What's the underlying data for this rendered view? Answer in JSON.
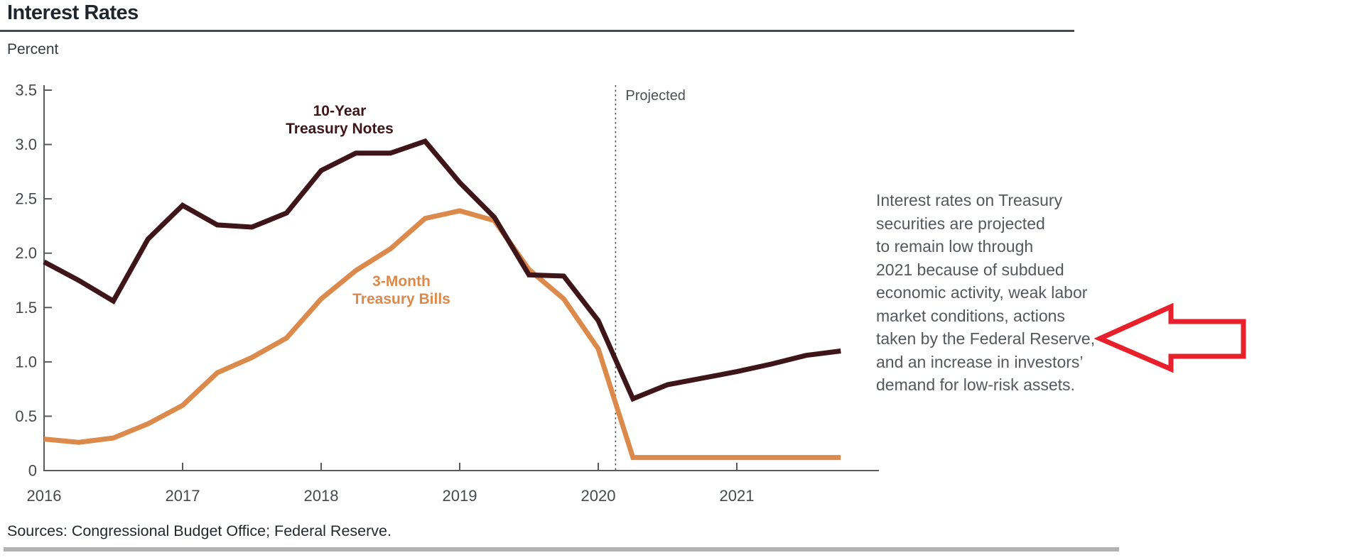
{
  "page": {
    "title": "Interest Rates",
    "unit_label": "Percent",
    "sources": "Sources: Congressional Budget Office; Federal Reserve.",
    "annotation": "Interest rates on Treasury\nsecurities are projected\nto remain low through\n2021 because of subdued\neconomic activity, weak labor\nmarket conditions, actions\ntaken by the Federal Reserve,\nand an increase in investors’\ndemand for low-risk assets."
  },
  "chart_data": {
    "type": "line",
    "title": "Interest Rates",
    "ylabel": "Percent",
    "ylim": [
      0,
      3.5
    ],
    "grid": false,
    "legend_position": "inline-labels",
    "y_ticks": [
      0,
      0.5,
      1.0,
      1.5,
      2.0,
      2.5,
      3.0,
      3.5
    ],
    "y_tick_labels": [
      "0",
      "0.5",
      "1.0",
      "1.5",
      "2.0",
      "2.5",
      "3.0",
      "3.5"
    ],
    "x_ticks": [
      2016,
      2017,
      2018,
      2019,
      2020,
      2021
    ],
    "x_tick_labels": [
      "2016",
      "2017",
      "2018",
      "2019",
      "2020",
      "2021"
    ],
    "x_start": 2016.0,
    "x_step": 0.25,
    "x_end": 2021.75,
    "projection": {
      "label": "Projected",
      "divider_x": 2020.125,
      "style": "dotted-vertical-line"
    },
    "series": [
      {
        "name": "3-Month Treasury Bills",
        "label_lines": [
          "3-Month",
          "Treasury Bills"
        ],
        "color": "#dc8a4b",
        "values": [
          0.29,
          0.26,
          0.3,
          0.43,
          0.6,
          0.9,
          1.04,
          1.22,
          1.58,
          1.84,
          2.04,
          2.32,
          2.39,
          2.3,
          1.85,
          1.58,
          1.12,
          0.12,
          0.12,
          0.12,
          0.12,
          0.12,
          0.12,
          0.12
        ]
      },
      {
        "name": "10-Year Treasury Notes",
        "label_lines": [
          "10-Year",
          "Treasury Notes"
        ],
        "color": "#3e1518",
        "values": [
          1.92,
          1.75,
          1.56,
          2.13,
          2.44,
          2.26,
          2.24,
          2.37,
          2.76,
          2.92,
          2.92,
          3.03,
          2.65,
          2.33,
          1.8,
          1.79,
          1.38,
          0.66,
          0.79,
          0.85,
          0.91,
          0.98,
          1.06,
          1.1
        ]
      }
    ]
  },
  "colors": {
    "notes_line": "#3e1518",
    "bills_line": "#dc8a4b",
    "axis": "#595b5d",
    "tick_label": "#46494c",
    "projected_label": "#4c5054",
    "arrow_red": "#e7202b",
    "title_text": "#20262c",
    "annotation_text": "#54585c",
    "bottom_bar": "#b2b2b2"
  }
}
